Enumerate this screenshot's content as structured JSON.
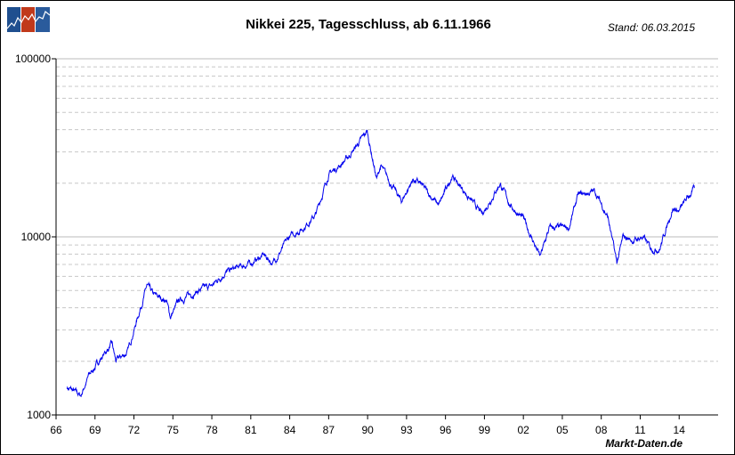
{
  "header": {
    "title": "Nikkei 225, Tagesschluss, ab 6.11.1966",
    "stand": "Stand: 06.03.2015",
    "source": "Markt-Daten.de"
  },
  "colors": {
    "line": "#0000ee",
    "logo_blue": "#1f4f8f",
    "logo_red": "#c0391b",
    "grid": "#bbbbbb"
  },
  "chart_data": {
    "type": "line",
    "title": "Nikkei 225, Tagesschluss, ab 6.11.1966",
    "xlabel": "",
    "ylabel": "",
    "yscale": "log",
    "ylim": [
      1000,
      100000
    ],
    "xlim": [
      1966,
      2017
    ],
    "y_ticks": [
      "1000",
      "10000",
      "100000"
    ],
    "x_ticks": [
      "66",
      "69",
      "72",
      "75",
      "78",
      "81",
      "84",
      "87",
      "90",
      "93",
      "96",
      "99",
      "02",
      "05",
      "08",
      "11",
      "14"
    ],
    "grid": true,
    "series": [
      {
        "name": "Nikkei 225",
        "x": [
          1966.85,
          1967.9,
          1968.5,
          1969.5,
          1970.3,
          1970.6,
          1971.5,
          1972,
          1973,
          1973.5,
          1974.5,
          1974.8,
          1975.5,
          1976,
          1977,
          1978,
          1979,
          1981,
          1982,
          1982.7,
          1984,
          1985,
          1986,
          1987,
          1987.8,
          1988.5,
          1989.97,
          1990.7,
          1991,
          1992.6,
          1993.5,
          1994,
          1995.5,
          1996.5,
          1997.5,
          1998.8,
          2000.2,
          2001,
          2002,
          2003.3,
          2004,
          2005.5,
          2006.2,
          2007.5,
          2008.5,
          2009.2,
          2009.7,
          2010.5,
          2011.2,
          2011.8,
          2012.5,
          2013.5,
          2014,
          2015.17
        ],
        "y": [
          1430,
          1280,
          1650,
          2100,
          2500,
          2000,
          2250,
          3000,
          5300,
          4700,
          4400,
          3550,
          4400,
          4600,
          5000,
          5300,
          6300,
          7100,
          7900,
          7100,
          10000,
          11200,
          13300,
          22400,
          25000,
          28000,
          38900,
          21000,
          25000,
          15800,
          21000,
          20000,
          15000,
          22000,
          17800,
          13300,
          20000,
          15000,
          12600,
          7700,
          11200,
          11200,
          17000,
          18000,
          13000,
          7100,
          10000,
          9500,
          10000,
          8600,
          8600,
          14500,
          14000,
          18800
        ]
      }
    ]
  }
}
